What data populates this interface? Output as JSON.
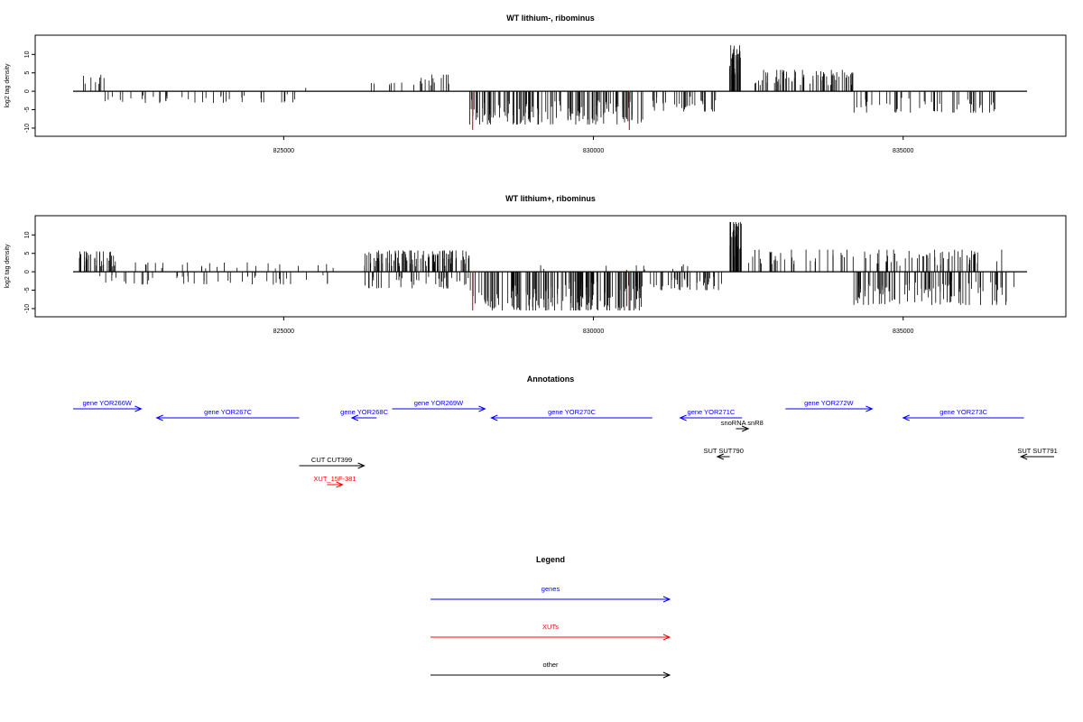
{
  "chart_data": [
    {
      "type": "bar",
      "title": "WT lithium-, ribominus",
      "ylabel": "log2 tag density",
      "xlabel": "",
      "xlim": [
        821600,
        837000
      ],
      "ylim": [
        -11,
        14
      ],
      "x_ticks": [
        "825000",
        "830000",
        "835000"
      ],
      "y_ticks": [
        "10",
        "5",
        "0",
        "-5",
        "-10"
      ],
      "series": [
        {
          "strand": "plus",
          "segments": [
            {
              "x0": 821700,
              "x1": 822100,
              "count": 8,
              "max": 4.5
            },
            {
              "x0": 825300,
              "x1": 825500,
              "count": 1,
              "max": 1.6
            },
            {
              "x0": 826300,
              "x1": 826800,
              "count": 6,
              "max": 3.5
            },
            {
              "x0": 826900,
              "x1": 827700,
              "count": 16,
              "max": 4.5
            },
            {
              "x0": 832200,
              "x1": 832400,
              "count": 30,
              "max": 12.5
            },
            {
              "x0": 832600,
              "x1": 834200,
              "count": 70,
              "max": 5.8
            }
          ]
        },
        {
          "strand": "minus",
          "segments": [
            {
              "x0": 822100,
              "x1": 824200,
              "count": 28,
              "max": 3.2
            },
            {
              "x0": 824300,
              "x1": 825200,
              "count": 12,
              "max": 3.0
            },
            {
              "x0": 828000,
              "x1": 830800,
              "count": 140,
              "max": 9.0
            },
            {
              "x0": 830900,
              "x1": 832000,
              "count": 30,
              "max": 5.5
            },
            {
              "x0": 834200,
              "x1": 836600,
              "count": 50,
              "max": 5.8
            }
          ]
        }
      ],
      "highlights": [
        {
          "x": 828050,
          "value": -10.5,
          "color": "#e41a1c"
        },
        {
          "x": 830580,
          "value": -10.5,
          "color": "#e41a1c"
        }
      ]
    },
    {
      "type": "bar",
      "title": "WT lithium+, ribominus",
      "ylabel": "log2 tag density",
      "xlabel": "",
      "xlim": [
        821600,
        837000
      ],
      "ylim": [
        -11,
        14
      ],
      "x_ticks": [
        "825000",
        "830000",
        "835000"
      ],
      "y_ticks": [
        "10",
        "5",
        "0",
        "-5",
        "-10"
      ],
      "series": [
        {
          "strand": "plus",
          "segments": [
            {
              "x0": 821700,
              "x1": 822300,
              "count": 40,
              "max": 5.5
            },
            {
              "x0": 822400,
              "x1": 825800,
              "count": 25,
              "max": 2.5
            },
            {
              "x0": 826300,
              "x1": 828000,
              "count": 110,
              "max": 5.8
            },
            {
              "x0": 828800,
              "x1": 831600,
              "count": 12,
              "max": 2.0
            },
            {
              "x0": 832200,
              "x1": 832400,
              "count": 30,
              "max": 13.5
            },
            {
              "x0": 832500,
              "x1": 836600,
              "count": 90,
              "max": 6.0
            }
          ]
        },
        {
          "strand": "minus",
          "segments": [
            {
              "x0": 822000,
              "x1": 825900,
              "count": 45,
              "max": 3.5
            },
            {
              "x0": 826300,
              "x1": 828000,
              "count": 40,
              "max": 4.5
            },
            {
              "x0": 828000,
              "x1": 830800,
              "count": 170,
              "max": 10.5
            },
            {
              "x0": 830900,
              "x1": 832100,
              "count": 45,
              "max": 5.0
            },
            {
              "x0": 834200,
              "x1": 836800,
              "count": 100,
              "max": 9.0
            }
          ]
        }
      ],
      "highlights": [
        {
          "x": 828050,
          "value": -10.5,
          "color": "#e41a1c"
        },
        {
          "x": 830580,
          "value": -10.5,
          "color": "#e41a1c"
        }
      ]
    },
    {
      "type": "annotation_track",
      "title": "Annotations",
      "xlim": [
        821600,
        837000
      ],
      "features": [
        {
          "label": "gene YOR266W",
          "x0": 821600,
          "x1": 822700,
          "strand": "+",
          "row": 0,
          "color": "#0000ff"
        },
        {
          "label": "gene YOR267C",
          "x0": 822950,
          "x1": 825250,
          "strand": "-",
          "row": 1,
          "color": "#0000ff"
        },
        {
          "label": "gene YOR268C",
          "x0": 826100,
          "x1": 826500,
          "strand": "-",
          "row": 1,
          "color": "#0000ff"
        },
        {
          "label": "gene YOR269W",
          "x0": 826750,
          "x1": 828250,
          "strand": "+",
          "row": 0,
          "color": "#0000ff"
        },
        {
          "label": "gene YOR270C",
          "x0": 828350,
          "x1": 830950,
          "strand": "-",
          "row": 1,
          "color": "#0000ff"
        },
        {
          "label": "gene YOR271C",
          "x0": 831400,
          "x1": 832400,
          "strand": "-",
          "row": 1,
          "color": "#0000ff"
        },
        {
          "label": "gene YOR272W",
          "x0": 833100,
          "x1": 834500,
          "strand": "+",
          "row": 0,
          "color": "#0000ff"
        },
        {
          "label": "gene YOR273C",
          "x0": 835000,
          "x1": 836950,
          "strand": "-",
          "row": 1,
          "color": "#0000ff"
        },
        {
          "label": "snoRNA snR8",
          "x0": 832300,
          "x1": 832500,
          "strand": "+",
          "row": 2,
          "color": "#000000"
        },
        {
          "label": "SUT SUT790",
          "x0": 832000,
          "x1": 832200,
          "strand": "-",
          "row": 3,
          "color": "#000000"
        },
        {
          "label": "SUT SUT791",
          "x0": 836900,
          "x1": 837600,
          "strand": "-",
          "row": 3,
          "color": "#000000"
        },
        {
          "label": "CUT CUT399",
          "x0": 825250,
          "x1": 826300,
          "strand": "+",
          "row": 4,
          "color": "#000000"
        },
        {
          "label": "XUT_15F-381",
          "x0": 825700,
          "x1": 825950,
          "strand": "+",
          "row": 5,
          "color": "#ff0000"
        }
      ]
    },
    {
      "type": "legend",
      "title": "Legend",
      "entries": [
        {
          "label": "genes",
          "color": "#0000ff"
        },
        {
          "label": "XUTs",
          "color": "#ff0000"
        },
        {
          "label": "other",
          "color": "#000000"
        }
      ]
    }
  ]
}
